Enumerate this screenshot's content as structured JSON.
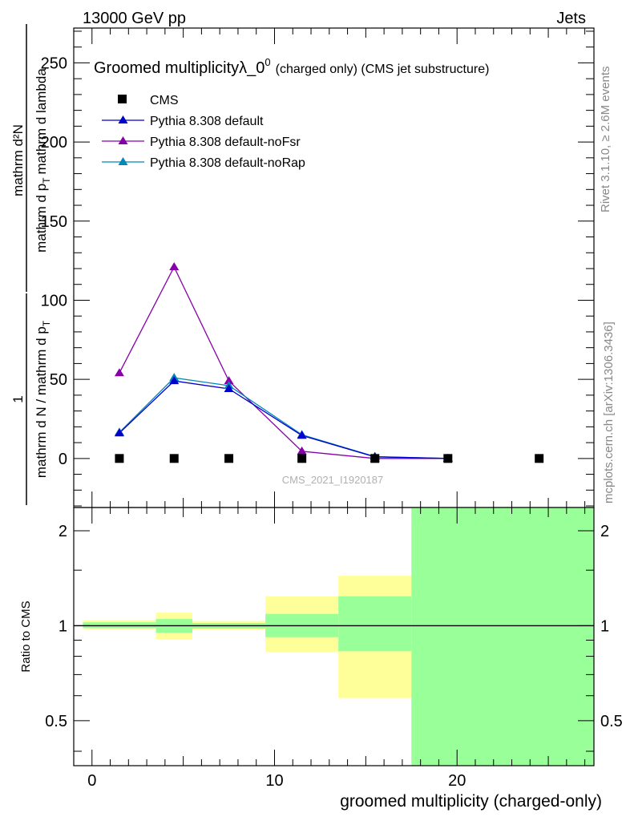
{
  "header": {
    "energy": "13000 GeV pp",
    "process": "Jets"
  },
  "side_labels": {
    "rivet": "Rivet 3.1.10, ≥ 2.6M events",
    "mcplots": "mcplots.cern.ch [arXiv:1306.3436]"
  },
  "colors": {
    "cms": "#000000",
    "pythia_default": "#0000cc",
    "pythia_nofsr": "#8800aa",
    "pythia_norap": "#0088bb",
    "band_outer": "#ffff99",
    "band_inner": "#99ff99"
  },
  "chart_data": [
    {
      "type": "line",
      "title": "Groomed multiplicityλ_0",
      "title_sup": "0",
      "title_suffix": "(charged only) (CMS jet substructure)",
      "watermark": "CMS_2021_I1920187",
      "ylabel": {
        "numerator": "mathrm d²N",
        "denominator": "mathrm d p",
        "denominator_tail": "mathrm d lambda",
        "prefactor_num": "1",
        "prefactor_den": "mathrm d N / mathrm d p",
        "pt_sub": "T"
      },
      "xlim": [
        -1,
        27.5
      ],
      "ylim": [
        -31,
        272
      ],
      "yticks": [
        0,
        50,
        100,
        150,
        200,
        250
      ],
      "legend_placement": "top-left",
      "series": [
        {
          "name": "CMS",
          "marker": "square",
          "x": [
            1.5,
            4.5,
            7.5,
            11.5,
            15.5,
            19.5,
            24.5
          ],
          "y": [
            0,
            0,
            0,
            0,
            0,
            0,
            0
          ]
        },
        {
          "name": "Pythia 8.308 default",
          "marker": "triangle",
          "x": [
            1.5,
            4.5,
            7.5,
            11.5,
            15.5,
            19.5
          ],
          "y": [
            16,
            49,
            44,
            14.5,
            1,
            0
          ]
        },
        {
          "name": "Pythia 8.308 default-noFsr",
          "marker": "triangle",
          "x": [
            1.5,
            4.5,
            7.5,
            11.5,
            15.5,
            19.5
          ],
          "y": [
            54,
            121,
            49,
            4.5,
            0,
            0
          ]
        },
        {
          "name": "Pythia 8.308 default-noRap",
          "marker": "triangle",
          "x": [
            1.5,
            4.5,
            7.5,
            11.5,
            15.5,
            19.5
          ],
          "y": [
            16.5,
            51,
            46,
            15,
            1.2,
            0
          ]
        }
      ]
    },
    {
      "type": "area",
      "ylabel": "Ratio to CMS",
      "xlabel": "groomed multiplicity (charged-only)",
      "xlim": [
        -1,
        27.5
      ],
      "ylim": [
        0.36,
        2.37
      ],
      "xticks": [
        0,
        10,
        20
      ],
      "yticks": [
        0.5,
        1,
        2
      ],
      "reference_line": 1,
      "bins": [
        {
          "lo": -0.5,
          "hi": 3.5,
          "outer": [
            0.975,
            1.04
          ],
          "inner": [
            0.985,
            1.025
          ]
        },
        {
          "lo": 3.5,
          "hi": 5.5,
          "outer": [
            0.905,
            1.1
          ],
          "inner": [
            0.95,
            1.05
          ]
        },
        {
          "lo": 5.5,
          "hi": 9.5,
          "outer": [
            0.97,
            1.035
          ],
          "inner": [
            0.98,
            1.02
          ]
        },
        {
          "lo": 9.5,
          "hi": 13.5,
          "outer": [
            0.825,
            1.24
          ],
          "inner": [
            0.92,
            1.09
          ]
        },
        {
          "lo": 13.5,
          "hi": 17.5,
          "outer": [
            0.59,
            1.44
          ],
          "inner": [
            0.83,
            1.24
          ]
        },
        {
          "lo": 17.5,
          "hi": 27.5,
          "outer": [
            0.36,
            2.37
          ],
          "inner": [
            0.36,
            2.37
          ]
        }
      ]
    }
  ]
}
